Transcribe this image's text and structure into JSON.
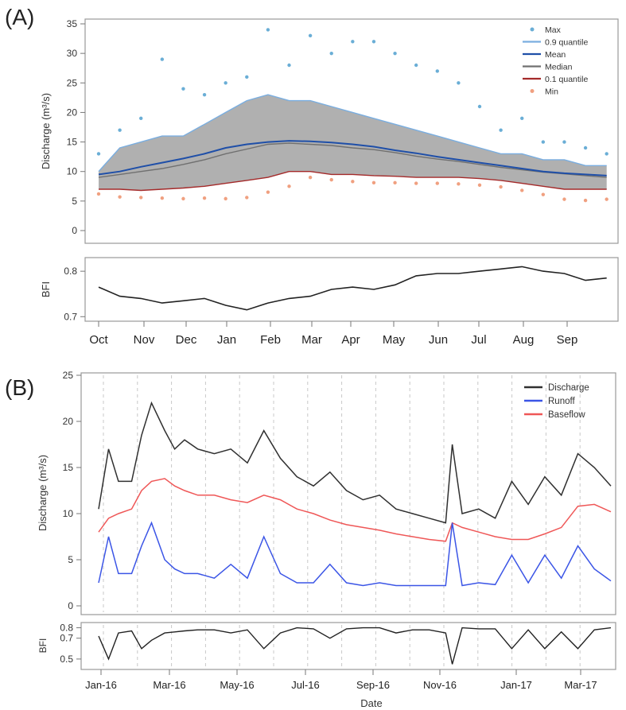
{
  "panel_a_label": "(A)",
  "panel_b_label": "(B)",
  "colors": {
    "max": "#6aaed6",
    "q90": "#7aaee0",
    "mean": "#1f4fa8",
    "median": "#707070",
    "q10": "#a42a2a",
    "min": "#f0a080",
    "band_fill": "#b0b0b0",
    "discharge": "#303030",
    "runoff": "#3b55e6",
    "baseflow": "#ef5757",
    "bfi": "#222222"
  },
  "chart_data": [
    {
      "id": "A-top",
      "type": "line",
      "ylabel": "Discharge (m³/s)",
      "ylim": [
        0,
        35
      ],
      "yticks": [
        "0",
        "5",
        "10",
        "15",
        "20",
        "25",
        "30",
        "35"
      ],
      "x": [
        0,
        0.5,
        1,
        1.5,
        2,
        2.5,
        3,
        3.5,
        4,
        4.5,
        5,
        5.5,
        6,
        6.5,
        7,
        7.5,
        8,
        8.5,
        9,
        9.5,
        10,
        10.5,
        11,
        11.5,
        12
      ],
      "legend": [
        "Max",
        "0.9 quantile",
        "Mean",
        "Median",
        "0.1 quantile",
        "Min"
      ],
      "legend_position": "top-right",
      "series": [
        {
          "name": "Max",
          "values": [
            13,
            17,
            19,
            29,
            24,
            23,
            25,
            26,
            34,
            28,
            33,
            30,
            32,
            32,
            30,
            28,
            27,
            25,
            21,
            17,
            19,
            15,
            15,
            14,
            13
          ]
        },
        {
          "name": "0.9 quantile",
          "values": [
            10,
            14,
            15,
            16,
            16,
            18,
            20,
            22,
            23,
            22,
            22,
            21,
            20,
            19,
            18,
            17,
            16,
            15,
            14,
            13,
            13,
            12,
            12,
            11,
            11
          ]
        },
        {
          "name": "Mean",
          "values": [
            9.5,
            10,
            10.8,
            11.5,
            12.2,
            13,
            14,
            14.6,
            15,
            15.2,
            15.1,
            14.9,
            14.6,
            14.2,
            13.6,
            13.1,
            12.5,
            12,
            11.5,
            11,
            10.5,
            10,
            9.7,
            9.5,
            9.3
          ]
        },
        {
          "name": "Median",
          "values": [
            9,
            9.5,
            10,
            10.5,
            11.2,
            12,
            13,
            13.8,
            14.6,
            14.8,
            14.6,
            14.4,
            14,
            13.7,
            13.2,
            12.6,
            12.1,
            11.7,
            11.2,
            10.7,
            10.3,
            9.9,
            9.6,
            9.3,
            9
          ]
        },
        {
          "name": "0.1 quantile",
          "values": [
            7,
            7,
            6.8,
            7,
            7.2,
            7.5,
            8,
            8.5,
            9,
            10,
            10,
            9.5,
            9.5,
            9.3,
            9.2,
            9,
            9,
            9,
            8.8,
            8.5,
            8,
            7.5,
            7,
            7,
            7
          ]
        },
        {
          "name": "Min",
          "values": [
            6.2,
            5.7,
            5.6,
            5.5,
            5.4,
            5.5,
            5.4,
            5.6,
            6.5,
            7.5,
            9,
            8.6,
            8.3,
            8.1,
            8.1,
            8,
            8,
            7.9,
            7.7,
            7.4,
            6.8,
            6.1,
            5.3,
            5.1,
            5.3
          ]
        }
      ]
    },
    {
      "id": "A-bfi",
      "type": "line",
      "ylabel": "BFI",
      "ylim": [
        0.69,
        0.83
      ],
      "yticks": [
        "0.7",
        "0.8"
      ],
      "xlabels": [
        "Oct",
        "Nov",
        "Dec",
        "Jan",
        "Feb",
        "Mar",
        "Apr",
        "May",
        "Jun",
        "Jul",
        "Aug",
        "Sep"
      ],
      "x": [
        0,
        0.5,
        1,
        1.5,
        2,
        2.5,
        3,
        3.5,
        4,
        4.5,
        5,
        5.5,
        6,
        6.5,
        7,
        7.5,
        8,
        8.5,
        9,
        9.5,
        10,
        10.5,
        11,
        11.5,
        12
      ],
      "series": [
        {
          "name": "BFI",
          "values": [
            0.765,
            0.745,
            0.74,
            0.73,
            0.735,
            0.74,
            0.725,
            0.715,
            0.73,
            0.74,
            0.745,
            0.76,
            0.765,
            0.76,
            0.77,
            0.79,
            0.795,
            0.795,
            0.8,
            0.805,
            0.81,
            0.8,
            0.795,
            0.78,
            0.785
          ]
        }
      ]
    },
    {
      "id": "B-top",
      "type": "line",
      "ylabel": "Discharge (m³/s)",
      "ylim": [
        0,
        25
      ],
      "yticks": [
        "0",
        "5",
        "10",
        "15",
        "20",
        "25"
      ],
      "x": [
        0,
        0.3,
        0.6,
        1,
        1.3,
        1.6,
        2,
        2.3,
        2.6,
        3,
        3.5,
        4,
        4.5,
        5,
        5.5,
        6,
        6.5,
        7,
        7.5,
        8,
        8.5,
        9,
        9.5,
        10,
        10.5,
        10.7,
        11,
        11.5,
        12,
        12.5,
        13,
        13.5,
        14,
        14.5,
        15,
        15.5
      ],
      "legend": [
        "Discharge",
        "Runoff",
        "Baseflow"
      ],
      "legend_position": "top-right",
      "series": [
        {
          "name": "Discharge",
          "values": [
            10.5,
            17,
            13.5,
            13.5,
            18.5,
            22,
            19,
            17,
            18,
            17,
            16.5,
            17,
            15.5,
            19,
            16,
            14,
            13,
            14.5,
            12.5,
            11.5,
            12,
            10.5,
            10,
            9.5,
            9,
            17.5,
            10,
            10.5,
            9.5,
            13.5,
            11,
            14,
            12,
            16.5,
            15,
            13
          ]
        },
        {
          "name": "Runoff",
          "values": [
            2.5,
            7.5,
            3.5,
            3.5,
            6.5,
            9,
            5,
            4,
            3.5,
            3.5,
            3,
            4.5,
            3,
            7.5,
            3.5,
            2.5,
            2.5,
            4.5,
            2.5,
            2.2,
            2.5,
            2.2,
            2.2,
            2.2,
            2.2,
            9,
            2.2,
            2.5,
            2.3,
            5.5,
            2.5,
            5.5,
            3,
            6.5,
            4,
            2.7
          ]
        },
        {
          "name": "Baseflow",
          "values": [
            8,
            9.5,
            10,
            10.5,
            12.5,
            13.5,
            13.8,
            13,
            12.5,
            12,
            12,
            11.5,
            11.2,
            12,
            11.5,
            10.5,
            10,
            9.3,
            8.8,
            8.5,
            8.2,
            7.8,
            7.5,
            7.2,
            7,
            9,
            8.5,
            8,
            7.5,
            7.2,
            7.2,
            7.8,
            8.5,
            10.8,
            11,
            10.2
          ]
        }
      ]
    },
    {
      "id": "B-bfi",
      "type": "line",
      "ylabel": "BFI",
      "ylim": [
        0.4,
        0.85
      ],
      "yticks": [
        "0.5",
        "0.7",
        "0.8"
      ],
      "xlabel": "Date",
      "xlabels": [
        "Jan-16",
        "Mar-16",
        "May-16",
        "Jul-16",
        "Sep-16",
        "Nov-16",
        "Jan-17",
        "Mar-17"
      ],
      "x": [
        0,
        0.3,
        0.6,
        1,
        1.3,
        1.6,
        2,
        2.3,
        2.6,
        3,
        3.5,
        4,
        4.5,
        5,
        5.5,
        6,
        6.5,
        7,
        7.5,
        8,
        8.5,
        9,
        9.5,
        10,
        10.5,
        10.7,
        11,
        11.5,
        12,
        12.5,
        13,
        13.5,
        14,
        14.5,
        15,
        15.5
      ],
      "series": [
        {
          "name": "BFI",
          "values": [
            0.72,
            0.5,
            0.75,
            0.77,
            0.6,
            0.68,
            0.75,
            0.76,
            0.77,
            0.78,
            0.78,
            0.75,
            0.78,
            0.6,
            0.75,
            0.8,
            0.79,
            0.7,
            0.79,
            0.8,
            0.8,
            0.75,
            0.78,
            0.78,
            0.75,
            0.45,
            0.8,
            0.79,
            0.79,
            0.6,
            0.78,
            0.6,
            0.76,
            0.6,
            0.78,
            0.8
          ]
        }
      ]
    }
  ]
}
